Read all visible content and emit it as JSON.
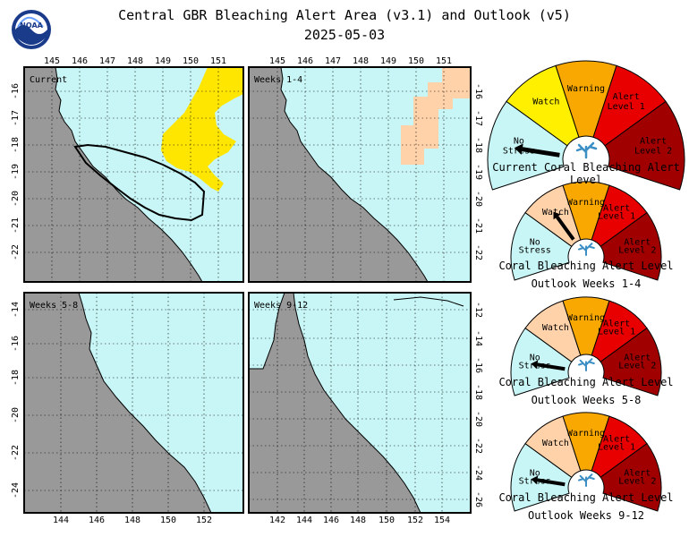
{
  "title": "Central GBR Bleaching Alert Area (v3.1) and Outlook (v5)",
  "date": "2025-05-03",
  "logo": {
    "text": "NOAA"
  },
  "colors": {
    "ocean": "#c8f5f5",
    "land": "#999999",
    "watch": "#ffe600",
    "nostress_light": "#ffd2aa",
    "g_nostress": "#c8f5f5",
    "g_nostress_outlook": "#ffd8b0",
    "g_watch": "#fff000",
    "g_watch_outlook": "#ffd2aa",
    "g_warning": "#f8a800",
    "g_alert1": "#e80000",
    "g_alert2": "#a00000"
  },
  "maps": [
    {
      "label": "Current",
      "x_ticks": [
        "145",
        "146",
        "147",
        "148",
        "149",
        "150",
        "151"
      ],
      "x_pos": "top",
      "y_ticks": [
        "-16",
        "-17",
        "-18",
        "-19",
        "-20",
        "-21",
        "-22"
      ],
      "y_side": "left"
    },
    {
      "label": "Weeks 1-4",
      "x_ticks": [
        "145",
        "146",
        "147",
        "148",
        "149",
        "150",
        "151"
      ],
      "x_pos": "top",
      "y_ticks": [
        "-16",
        "-17",
        "-18",
        "-19",
        "-20",
        "-21",
        "-22"
      ],
      "y_side": "right"
    },
    {
      "label": "Weeks 5-8",
      "x_ticks": [
        "144",
        "146",
        "148",
        "150",
        "152"
      ],
      "x_pos": "bottom",
      "y_ticks": [
        "-14",
        "-16",
        "-18",
        "-20",
        "-22",
        "-24"
      ],
      "y_side": "left"
    },
    {
      "label": "Weeks 9-12",
      "x_ticks": [
        "142",
        "144",
        "146",
        "148",
        "150",
        "152",
        "154"
      ],
      "x_pos": "bottom",
      "y_ticks": [
        "-12",
        "-14",
        "-16",
        "-18",
        "-20",
        "-22",
        "-24",
        "-26"
      ],
      "y_side": "right"
    }
  ],
  "gauges": [
    {
      "caption_1": "Current Coral Bleaching Alert Level",
      "caption_2": "",
      "level": "No Stress",
      "labels": {
        "no_stress": "No Stress",
        "watch": "Watch",
        "warning": "Warning",
        "alert1": "Alert Level 1",
        "alert2": "Alert Level 2"
      }
    },
    {
      "caption_1": "Coral Bleaching Alert Level",
      "caption_2": "Outlook Weeks 1-4",
      "level": "Watch",
      "labels": {
        "no_stress": "No Stress",
        "watch": "Watch",
        "warning": "Warning",
        "alert1": "Alert Level 1",
        "alert2": "Alert Level 2"
      }
    },
    {
      "caption_1": "Coral Bleaching Alert Level",
      "caption_2": "Outlook Weeks 5-8",
      "level": "No Stress",
      "labels": {
        "no_stress": "No Stress",
        "watch": "Watch",
        "warning": "Warning",
        "alert1": "Alert Level 1",
        "alert2": "Alert Level 2"
      }
    },
    {
      "caption_1": "Coral Bleaching Alert Level",
      "caption_2": "Outlook Weeks 9-12",
      "level": "No Stress",
      "labels": {
        "no_stress": "No Stress",
        "watch": "Watch",
        "warning": "Warning",
        "alert1": "Alert Level 1",
        "alert2": "Alert Level 2"
      }
    }
  ]
}
